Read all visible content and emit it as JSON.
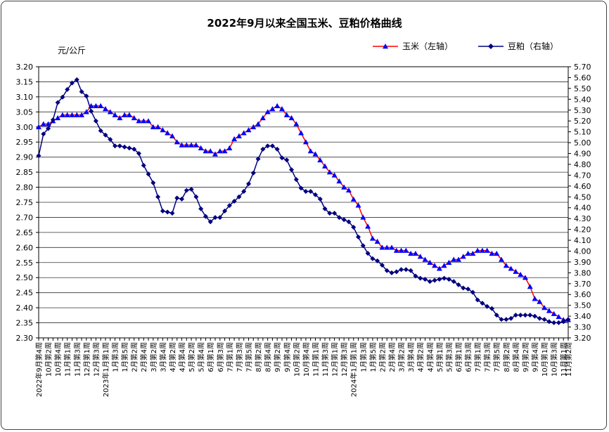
{
  "chart_data": {
    "type": "line",
    "title": "2022年9月以来全国玉米、豆粕价格曲线",
    "y_axis_label": "元/公斤",
    "categories": [
      "2022年9月第4周",
      null,
      "10月第2周",
      null,
      "10月第4周",
      null,
      "11月第1周",
      null,
      "11月第3周",
      null,
      "12月第1周",
      null,
      "12月第3周",
      null,
      "2023年1月第1周",
      null,
      "1月第3周",
      null,
      "1月第5周",
      null,
      "2月第2周",
      null,
      "2月第4周",
      null,
      "3月第2周",
      null,
      "3月第4周",
      null,
      "4月第2周",
      null,
      "4月第4周",
      null,
      "5月第2周",
      null,
      "5月第4周",
      null,
      "6月第1周",
      null,
      "6月第3周",
      null,
      "7月第1周",
      null,
      "7月第3周",
      null,
      "7月第5周",
      null,
      "8月第2周",
      null,
      "8月第4周",
      null,
      "9月第2周",
      null,
      "9月第4周",
      null,
      "10月第2周",
      null,
      "10月第4周",
      null,
      "11月第1周",
      null,
      "11月第3周",
      null,
      "12月第1周",
      null,
      "12月第3周",
      null,
      "2024年1月第1周",
      null,
      "1月第3周",
      null,
      "1月第5周",
      null,
      "2月第2周",
      null,
      "2月第4周",
      null,
      "3月第2周",
      null,
      "3月第4周",
      null,
      "4月第2周",
      null,
      "4月第4周",
      null,
      "5月第1周",
      null,
      "5月第3周",
      null,
      "6月第1周",
      null,
      "6月第3周",
      null,
      "7月第1周",
      null,
      "7月第3周",
      null,
      "7月第5周",
      null,
      "8月第2周",
      null,
      "8月第4周",
      null,
      "9月第2周",
      null,
      "9月第4周",
      null,
      "10月第1周",
      null,
      "10月第3周",
      null,
      "11月第1周",
      "11月第2周"
    ],
    "series": [
      {
        "name": "玉米（左轴）",
        "color": "#ff0000",
        "marker_color": "#0000ff",
        "marker": "triangle",
        "axis": "y",
        "values": [
          3.0,
          3.01,
          3.01,
          3.02,
          3.03,
          3.04,
          3.04,
          3.04,
          3.04,
          3.04,
          3.05,
          3.07,
          3.07,
          3.07,
          3.06,
          3.05,
          3.04,
          3.03,
          3.04,
          3.04,
          3.03,
          3.02,
          3.02,
          3.02,
          3.0,
          3.0,
          2.99,
          2.98,
          2.97,
          2.95,
          2.94,
          2.94,
          2.94,
          2.94,
          2.93,
          2.92,
          2.92,
          2.91,
          2.92,
          2.92,
          2.93,
          2.96,
          2.97,
          2.98,
          2.99,
          3.0,
          3.01,
          3.03,
          3.05,
          3.06,
          3.07,
          3.06,
          3.04,
          3.03,
          3.01,
          2.98,
          2.95,
          2.92,
          2.91,
          2.89,
          2.87,
          2.85,
          2.84,
          2.82,
          2.8,
          2.79,
          2.76,
          2.74,
          2.7,
          2.67,
          2.63,
          2.62,
          2.6,
          2.6,
          2.6,
          2.59,
          2.59,
          2.59,
          2.58,
          2.58,
          2.57,
          2.56,
          2.55,
          2.54,
          2.53,
          2.54,
          2.55,
          2.56,
          2.56,
          2.57,
          2.58,
          2.58,
          2.59,
          2.59,
          2.59,
          2.58,
          2.58,
          2.56,
          2.54,
          2.53,
          2.52,
          2.51,
          2.5,
          2.47,
          2.43,
          2.42,
          2.4,
          2.39,
          2.38,
          2.37,
          2.36,
          2.36
        ]
      },
      {
        "name": "豆粕（右轴）",
        "color": "#000080",
        "marker_color": "#000080",
        "marker": "diamond",
        "axis": "y2",
        "values": [
          4.88,
          5.08,
          5.13,
          5.21,
          5.37,
          5.42,
          5.49,
          5.55,
          5.58,
          5.47,
          5.43,
          5.29,
          5.2,
          5.11,
          5.07,
          5.03,
          4.97,
          4.97,
          4.96,
          4.95,
          4.94,
          4.9,
          4.79,
          4.71,
          4.63,
          4.5,
          4.37,
          4.36,
          4.35,
          4.49,
          4.48,
          4.56,
          4.57,
          4.5,
          4.39,
          4.32,
          4.27,
          4.31,
          4.31,
          4.37,
          4.42,
          4.46,
          4.5,
          4.55,
          4.62,
          4.72,
          4.85,
          4.94,
          4.97,
          4.97,
          4.94,
          4.86,
          4.84,
          4.75,
          4.66,
          4.58,
          4.55,
          4.55,
          4.52,
          4.48,
          4.39,
          4.35,
          4.35,
          4.31,
          4.29,
          4.27,
          4.22,
          4.13,
          4.05,
          3.98,
          3.93,
          3.91,
          3.87,
          3.82,
          3.8,
          3.81,
          3.83,
          3.83,
          3.82,
          3.77,
          3.75,
          3.74,
          3.72,
          3.73,
          3.74,
          3.75,
          3.74,
          3.72,
          3.69,
          3.66,
          3.65,
          3.62,
          3.55,
          3.52,
          3.49,
          3.47,
          3.41,
          3.37,
          3.37,
          3.38,
          3.41,
          3.41,
          3.41,
          3.41,
          3.4,
          3.38,
          3.37,
          3.35,
          3.34,
          3.34,
          3.35,
          3.37
        ]
      }
    ],
    "ylim": [
      2.3,
      3.2
    ],
    "yticks": [
      {
        "value": 2.3,
        "label": "2.30"
      },
      2.35,
      {
        "value": 2.4,
        "label": "2.40"
      },
      2.45,
      {
        "value": 2.5,
        "label": "2.50"
      },
      2.55,
      {
        "value": 2.6,
        "label": "2.60"
      },
      2.65,
      {
        "value": 2.7,
        "label": "2.70"
      },
      2.75,
      {
        "value": 2.8,
        "label": "2.80"
      },
      2.85,
      {
        "value": 2.9,
        "label": "2.90"
      },
      2.95,
      {
        "value": 3.0,
        "label": "3.00"
      },
      3.05,
      {
        "value": 3.1,
        "label": "3.10"
      },
      3.15,
      {
        "value": 3.2,
        "label": "3.20"
      }
    ],
    "y2lim": [
      3.2,
      5.7
    ],
    "y2ticks": [
      {
        "value": 3.2,
        "label": "3.20"
      },
      {
        "value": 3.3,
        "label": "3.30"
      },
      {
        "value": 3.4,
        "label": "3.40"
      },
      {
        "value": 3.5,
        "label": "3.50"
      },
      {
        "value": 3.6,
        "label": "3.60"
      },
      {
        "value": 3.7,
        "label": "3.70"
      },
      {
        "value": 3.8,
        "label": "3.80"
      },
      {
        "value": 3.9,
        "label": "3.90"
      },
      {
        "value": 4.0,
        "label": "4.00"
      },
      {
        "value": 4.1,
        "label": "4.10"
      },
      {
        "value": 4.2,
        "label": "4.20"
      },
      {
        "value": 4.3,
        "label": "4.30"
      },
      {
        "value": 4.4,
        "label": "4.40"
      },
      {
        "value": 4.5,
        "label": "4.50"
      },
      {
        "value": 4.6,
        "label": "4.60"
      },
      {
        "value": 4.7,
        "label": "4.70"
      },
      {
        "value": 4.8,
        "label": "4.80"
      },
      {
        "value": 4.9,
        "label": "4.90"
      },
      {
        "value": 5.0,
        "label": "5.00"
      },
      {
        "value": 5.1,
        "label": "5.10"
      },
      {
        "value": 5.2,
        "label": "5.20"
      },
      {
        "value": 5.3,
        "label": "5.30"
      },
      {
        "value": 5.4,
        "label": "5.40"
      },
      {
        "value": 5.5,
        "label": "5.50"
      },
      {
        "value": 5.6,
        "label": "5.60"
      },
      {
        "value": 5.7,
        "label": "5.70"
      }
    ],
    "grid": true,
    "legend": "top-right"
  }
}
